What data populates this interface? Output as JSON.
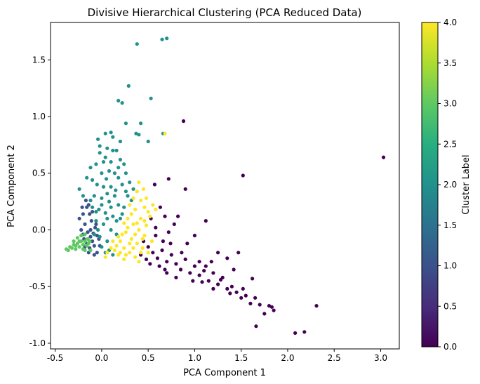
{
  "chart_data": {
    "type": "scatter",
    "title": "Divisive Hierarchical Clustering (PCA Reduced Data)",
    "xlabel": "PCA Component 1",
    "ylabel": "PCA Component 2",
    "xlim": [
      -0.55,
      3.2
    ],
    "ylim": [
      -1.05,
      1.83
    ],
    "x_ticks": [
      "-0.5",
      "0.0",
      "0.5",
      "1.0",
      "1.5",
      "2.0",
      "2.5",
      "3.0"
    ],
    "y_ticks": [
      "-1.0",
      "-0.5",
      "0.0",
      "0.5",
      "1.0",
      "1.5"
    ],
    "grid": false,
    "colorbar": {
      "label": "Cluster Label",
      "range": [
        0.0,
        4.0
      ],
      "ticks": [
        "0.0",
        "0.5",
        "1.0",
        "1.5",
        "2.0",
        "2.5",
        "3.0",
        "3.5",
        "4.0"
      ],
      "colormap": "viridis"
    },
    "series": [
      {
        "cluster": 0,
        "color": "#440154",
        "points": [
          [
            0.88,
            0.96
          ],
          [
            0.72,
            0.45
          ],
          [
            0.9,
            0.36
          ],
          [
            0.57,
            0.4
          ],
          [
            0.63,
            0.2
          ],
          [
            0.68,
            0.12
          ],
          [
            0.82,
            0.12
          ],
          [
            0.53,
            0.1
          ],
          [
            0.58,
            0.02
          ],
          [
            0.78,
            0.05
          ],
          [
            1.12,
            0.08
          ],
          [
            1.0,
            -0.05
          ],
          [
            0.45,
            -0.1
          ],
          [
            0.5,
            -0.15
          ],
          [
            0.55,
            -0.2
          ],
          [
            0.6,
            -0.25
          ],
          [
            0.65,
            -0.18
          ],
          [
            0.7,
            -0.28
          ],
          [
            0.75,
            -0.22
          ],
          [
            0.8,
            -0.3
          ],
          [
            0.85,
            -0.35
          ],
          [
            0.9,
            -0.26
          ],
          [
            0.95,
            -0.38
          ],
          [
            1.0,
            -0.32
          ],
          [
            1.05,
            -0.4
          ],
          [
            1.1,
            -0.36
          ],
          [
            1.15,
            -0.45
          ],
          [
            1.2,
            -0.38
          ],
          [
            1.25,
            -0.48
          ],
          [
            1.3,
            -0.42
          ],
          [
            1.35,
            -0.52
          ],
          [
            1.4,
            -0.5
          ],
          [
            1.45,
            -0.55
          ],
          [
            1.5,
            -0.6
          ],
          [
            1.55,
            -0.58
          ],
          [
            1.6,
            -0.65
          ],
          [
            1.65,
            -0.6
          ],
          [
            1.7,
            -0.66
          ],
          [
            1.75,
            -0.74
          ],
          [
            1.8,
            -0.67
          ],
          [
            1.83,
            -0.68
          ],
          [
            1.85,
            -0.71
          ],
          [
            1.66,
            -0.85
          ],
          [
            2.08,
            -0.91
          ],
          [
            2.18,
            -0.9
          ],
          [
            2.31,
            -0.67
          ],
          [
            3.03,
            0.64
          ],
          [
            1.52,
            0.48
          ],
          [
            1.47,
            -0.2
          ],
          [
            1.35,
            -0.25
          ],
          [
            1.25,
            -0.2
          ],
          [
            1.18,
            -0.28
          ],
          [
            1.62,
            -0.43
          ],
          [
            1.42,
            -0.35
          ],
          [
            0.48,
            -0.26
          ],
          [
            0.52,
            -0.3
          ],
          [
            0.42,
            -0.22
          ],
          [
            0.62,
            -0.32
          ],
          [
            0.68,
            -0.35
          ],
          [
            0.58,
            -0.05
          ],
          [
            0.66,
            -0.1
          ],
          [
            0.74,
            -0.12
          ],
          [
            0.72,
            -0.02
          ],
          [
            0.86,
            -0.2
          ],
          [
            0.92,
            -0.12
          ],
          [
            1.05,
            -0.28
          ],
          [
            1.12,
            -0.32
          ],
          [
            1.08,
            -0.46
          ],
          [
            1.2,
            -0.52
          ],
          [
            1.28,
            -0.44
          ],
          [
            1.38,
            -0.56
          ],
          [
            1.52,
            -0.52
          ],
          [
            0.8,
            -0.42
          ],
          [
            0.7,
            -0.38
          ],
          [
            0.98,
            -0.45
          ]
        ]
      },
      {
        "cluster": 1,
        "color": "#3b528b",
        "points": [
          [
            -0.16,
            0.2
          ],
          [
            -0.2,
            0.14
          ],
          [
            -0.24,
            0.1
          ],
          [
            -0.18,
            0.05
          ],
          [
            -0.22,
            0.0
          ],
          [
            -0.15,
            -0.02
          ],
          [
            -0.12,
            -0.06
          ],
          [
            -0.19,
            -0.08
          ],
          [
            -0.16,
            -0.12
          ],
          [
            -0.1,
            -0.1
          ],
          [
            -0.13,
            -0.16
          ],
          [
            -0.08,
            -0.14
          ],
          [
            -0.05,
            -0.2
          ],
          [
            -0.11,
            0.08
          ],
          [
            -0.13,
            0.14
          ],
          [
            -0.07,
            0.02
          ],
          [
            -0.09,
            -0.03
          ],
          [
            -0.03,
            -0.08
          ],
          [
            -0.21,
            0.2
          ],
          [
            -0.17,
            0.26
          ],
          [
            -0.14,
            0.22
          ],
          [
            -0.2,
            -0.04
          ],
          [
            -0.06,
            0.05
          ],
          [
            -0.02,
            -0.14
          ],
          [
            -0.12,
            0.0
          ],
          [
            -0.14,
            -0.2
          ],
          [
            -0.08,
            -0.22
          ],
          [
            -0.1,
            0.16
          ],
          [
            -0.05,
            -0.05
          ],
          [
            -0.18,
            -0.15
          ]
        ]
      },
      {
        "cluster": 2,
        "color": "#21918c",
        "points": [
          [
            0.38,
            1.64
          ],
          [
            0.65,
            1.68
          ],
          [
            0.7,
            1.69
          ],
          [
            0.29,
            1.27
          ],
          [
            0.53,
            1.16
          ],
          [
            0.18,
            1.14
          ],
          [
            0.22,
            1.12
          ],
          [
            0.42,
            0.94
          ],
          [
            0.26,
            0.94
          ],
          [
            0.66,
            0.85
          ],
          [
            0.37,
            0.85
          ],
          [
            0.4,
            0.84
          ],
          [
            0.5,
            0.78
          ],
          [
            0.1,
            0.86
          ],
          [
            0.12,
            0.82
          ],
          [
            0.04,
            0.85
          ],
          [
            -0.04,
            0.8
          ],
          [
            0.2,
            0.78
          ],
          [
            0.16,
            0.7
          ],
          [
            0.06,
            0.72
          ],
          [
            -0.02,
            0.68
          ],
          [
            0.1,
            0.6
          ],
          [
            0.02,
            0.6
          ],
          [
            -0.06,
            0.58
          ],
          [
            0.18,
            0.55
          ],
          [
            0.26,
            0.5
          ],
          [
            -0.12,
            0.55
          ],
          [
            -0.16,
            0.46
          ],
          [
            0.3,
            0.42
          ],
          [
            0.34,
            0.36
          ],
          [
            -0.24,
            0.36
          ],
          [
            -0.2,
            0.3
          ],
          [
            0.28,
            0.3
          ],
          [
            0.0,
            0.5
          ],
          [
            0.05,
            0.45
          ],
          [
            -0.05,
            0.4
          ],
          [
            0.1,
            0.38
          ],
          [
            0.15,
            0.35
          ],
          [
            -0.08,
            0.3
          ],
          [
            0.0,
            0.28
          ],
          [
            0.08,
            0.25
          ],
          [
            0.18,
            0.22
          ],
          [
            0.24,
            0.2
          ],
          [
            -0.1,
            0.2
          ],
          [
            -0.03,
            0.18
          ],
          [
            0.04,
            0.15
          ],
          [
            0.12,
            0.12
          ],
          [
            0.2,
            0.1
          ],
          [
            -0.06,
            0.08
          ],
          [
            0.02,
            0.05
          ],
          [
            0.1,
            0.0
          ],
          [
            0.16,
            -0.04
          ],
          [
            -0.02,
            -0.06
          ],
          [
            0.06,
            -0.1
          ],
          [
            0.0,
            -0.15
          ],
          [
            0.08,
            -0.18
          ],
          [
            0.12,
            -0.22
          ],
          [
            0.04,
            -0.2
          ],
          [
            -0.04,
            0.0
          ],
          [
            0.14,
            0.3
          ],
          [
            0.22,
            0.4
          ],
          [
            0.08,
            0.52
          ],
          [
            -0.1,
            0.44
          ],
          [
            0.2,
            0.62
          ],
          [
            0.12,
            0.7
          ],
          [
            -0.02,
            0.74
          ],
          [
            0.24,
            0.58
          ],
          [
            0.32,
            0.26
          ],
          [
            0.06,
            0.32
          ],
          [
            -0.12,
            0.26
          ],
          [
            0.18,
            0.46
          ],
          [
            0.26,
            0.34
          ],
          [
            -0.06,
            0.16
          ],
          [
            0.1,
            0.2
          ],
          [
            0.02,
            0.38
          ],
          [
            0.14,
            0.5
          ],
          [
            0.04,
            0.64
          ],
          [
            0.16,
            0.08
          ],
          [
            0.22,
            0.14
          ],
          [
            -0.08,
            -0.04
          ],
          [
            0.06,
            0.1
          ],
          [
            0.0,
            0.22
          ]
        ]
      },
      {
        "cluster": 3,
        "color": "#5ec962",
        "points": [
          [
            -0.38,
            -0.17
          ],
          [
            -0.34,
            -0.15
          ],
          [
            -0.3,
            -0.13
          ],
          [
            -0.26,
            -0.12
          ],
          [
            -0.22,
            -0.1
          ],
          [
            -0.18,
            -0.1
          ],
          [
            -0.26,
            -0.07
          ],
          [
            -0.22,
            -0.05
          ],
          [
            -0.18,
            -0.04
          ],
          [
            -0.32,
            -0.16
          ],
          [
            -0.28,
            -0.17
          ],
          [
            -0.24,
            -0.15
          ],
          [
            -0.2,
            -0.17
          ],
          [
            -0.16,
            -0.14
          ],
          [
            -0.14,
            -0.12
          ],
          [
            -0.12,
            -0.18
          ],
          [
            -0.2,
            -0.13
          ],
          [
            -0.24,
            -0.1
          ],
          [
            -0.28,
            -0.14
          ],
          [
            -0.3,
            -0.1
          ],
          [
            -0.15,
            -0.08
          ],
          [
            -0.18,
            -0.18
          ],
          [
            -0.13,
            -0.1
          ],
          [
            -0.36,
            -0.18
          ]
        ]
      },
      {
        "cluster": 4,
        "color": "#fde725",
        "points": [
          [
            0.68,
            0.85
          ],
          [
            0.45,
            0.36
          ],
          [
            0.4,
            0.42
          ],
          [
            0.48,
            0.28
          ],
          [
            0.55,
            0.22
          ],
          [
            0.52,
            0.12
          ],
          [
            0.42,
            0.26
          ],
          [
            0.3,
            0.22
          ],
          [
            0.36,
            0.18
          ],
          [
            0.42,
            0.1
          ],
          [
            0.28,
            0.1
          ],
          [
            0.34,
            0.05
          ],
          [
            0.4,
            0.0
          ],
          [
            0.46,
            -0.05
          ],
          [
            0.26,
            -0.02
          ],
          [
            0.32,
            -0.08
          ],
          [
            0.38,
            -0.12
          ],
          [
            0.44,
            -0.16
          ],
          [
            0.5,
            -0.2
          ],
          [
            0.2,
            -0.1
          ],
          [
            0.24,
            -0.16
          ],
          [
            0.3,
            -0.2
          ],
          [
            0.36,
            -0.24
          ],
          [
            0.14,
            -0.18
          ],
          [
            0.18,
            -0.22
          ],
          [
            0.24,
            -0.26
          ],
          [
            0.1,
            -0.16
          ],
          [
            0.06,
            -0.2
          ],
          [
            0.04,
            -0.24
          ],
          [
            0.28,
            0.02
          ],
          [
            0.48,
            0.04
          ],
          [
            0.54,
            -0.1
          ],
          [
            0.22,
            -0.04
          ],
          [
            0.16,
            -0.14
          ],
          [
            0.34,
            -0.16
          ],
          [
            0.42,
            -0.2
          ],
          [
            0.12,
            -0.1
          ],
          [
            0.26,
            -0.22
          ],
          [
            0.4,
            -0.28
          ],
          [
            0.32,
            0.14
          ],
          [
            0.5,
            0.16
          ],
          [
            0.38,
            0.06
          ],
          [
            0.44,
            -0.08
          ],
          [
            0.2,
            -0.2
          ],
          [
            0.3,
            -0.12
          ],
          [
            0.36,
            -0.04
          ],
          [
            0.46,
            0.08
          ],
          [
            0.58,
            0.18
          ],
          [
            0.34,
            0.28
          ],
          [
            0.38,
            0.34
          ],
          [
            0.46,
            0.2
          ],
          [
            0.24,
            0.06
          ],
          [
            0.18,
            -0.06
          ]
        ]
      }
    ]
  }
}
